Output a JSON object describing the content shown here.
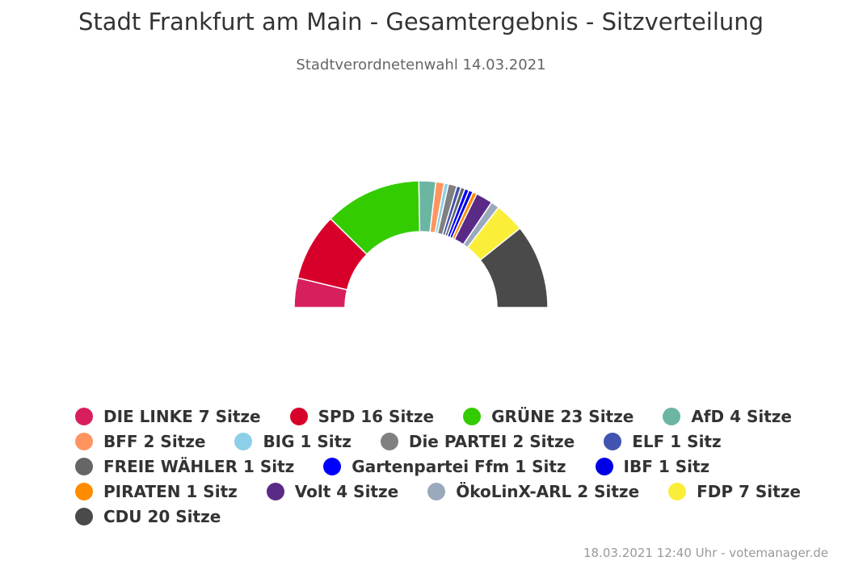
{
  "chart_data": {
    "type": "pie",
    "title": "Stadt Frankfurt am Main - Gesamtergebnis - Sitzverteilung",
    "subtitle": "Stadtverordnetenwahl 14.03.2021",
    "categories": [
      "DIE LINKE",
      "SPD",
      "GRÜNE",
      "AfD",
      "BFF",
      "BIG",
      "Die PARTEI",
      "ELF",
      "FREIE WÄHLER",
      "Gartenpartei Ffm",
      "IBF",
      "PIRATEN",
      "Volt",
      "ÖkoLinX-ARL",
      "FDP",
      "CDU"
    ],
    "values": [
      7,
      16,
      23,
      4,
      2,
      1,
      2,
      1,
      1,
      1,
      1,
      1,
      4,
      2,
      7,
      20
    ],
    "colors": [
      "#d81f5d",
      "#d7002a",
      "#33cc00",
      "#6bb5a3",
      "#ff9460",
      "#8ccfe8",
      "#808080",
      "#4253b0",
      "#666666",
      "#0000ff",
      "#0000e6",
      "#ff8c00",
      "#5a2a87",
      "#9aa9bc",
      "#fbee38",
      "#4a4a4a"
    ],
    "legend_labels": [
      "DIE LINKE 7 Sitze",
      "SPD 16 Sitze",
      "GRÜNE 23 Sitze",
      "AfD 4 Sitze",
      "BFF 2 Sitze",
      "BIG 1 Sitz",
      "Die PARTEI 2 Sitze",
      "ELF 1 Sitz",
      "FREIE WÄHLER 1 Sitz",
      "Gartenpartei Ffm 1 Sitz",
      "IBF 1 Sitz",
      "PIRATEN 1 Sitz",
      "Volt 4 Sitze",
      "ÖkoLinX-ARL 2 Sitze",
      "FDP 7 Sitze",
      "CDU 20 Sitze"
    ],
    "variant": "semicircle",
    "legend_position": "bottom"
  },
  "credits": "18.03.2021 12:40 Uhr - votemanager.de"
}
